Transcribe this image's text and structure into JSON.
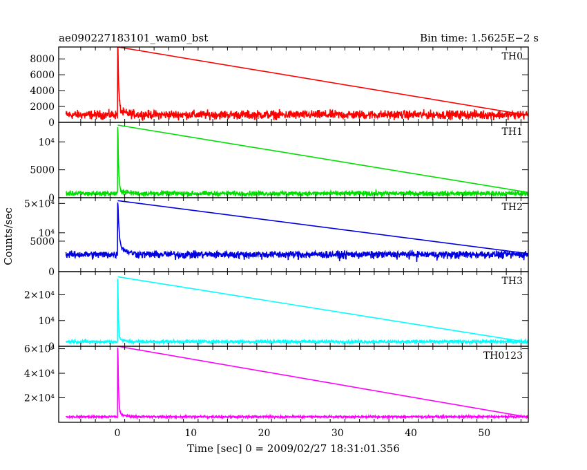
{
  "header": {
    "left_title": "ae090227183101_wam0_bst",
    "right_title": "Bin time: 1.5625E−2 s"
  },
  "axes": {
    "ylabel": "Counts/sec",
    "xlabel": "Time [sec] 0 = 2009/02/27 18:31:01.356"
  },
  "chart_data": {
    "type": "line",
    "x_range": [
      -8,
      56
    ],
    "x_ticks": [
      0,
      10,
      20,
      30,
      40,
      50
    ],
    "x_tick_labels": [
      "0",
      "10",
      "20",
      "30",
      "40",
      "50"
    ],
    "grid": false,
    "panels": [
      {
        "name": "TH0",
        "color": "#ff0000",
        "ylim": [
          0,
          9500
        ],
        "y_ticks": [
          0,
          2000,
          4000,
          6000,
          8000
        ],
        "y_tick_labels": [
          "0",
          "2000",
          "4000",
          "6000",
          "8000"
        ],
        "data_start": -7,
        "data_end": 56,
        "baseline": 950,
        "noise": 420,
        "peak_time": 0.05,
        "peak": 9500,
        "peak_width": 0.12,
        "tail": 1.2
      },
      {
        "name": "TH1",
        "color": "#00e000",
        "ylim": [
          0,
          13500
        ],
        "y_ticks": [
          0,
          5000,
          10000
        ],
        "y_tick_labels": [
          "0",
          "5000",
          "10⁴"
        ],
        "data_start": -7,
        "data_end": 56,
        "baseline": 750,
        "noise": 330,
        "peak_time": 0.05,
        "peak": 13000,
        "peak_width": 0.1,
        "tail": 1.0
      },
      {
        "name": "TH2",
        "color": "#0000e0",
        "ylim": [
          0,
          63000
        ],
        "y_ticks": [
          0,
          5000,
          10000,
          50000
        ],
        "y_tick_labels": [
          "0",
          "5000",
          "10⁴",
          "5×10⁴"
        ],
        "y_scale": "power",
        "y_exponent": 0.35,
        "data_start": -7,
        "data_end": 56,
        "baseline": 1000,
        "noise": 450,
        "peak_time": 0.05,
        "peak": 56000,
        "peak_width": 0.1,
        "tail": 0.8
      },
      {
        "name": "TH3",
        "color": "#00ffff",
        "ylim": [
          0,
          29000
        ],
        "y_ticks": [
          0,
          10000,
          20000
        ],
        "y_tick_labels": [
          "0",
          "10⁴",
          "2×10⁴"
        ],
        "data_start": -7,
        "data_end": 56,
        "baseline": 1800,
        "noise": 480,
        "peak_time": 0.05,
        "peak": 27000,
        "peak_width": 0.08,
        "tail": 0.6
      },
      {
        "name": "TH0123",
        "color": "#ff00ff",
        "ylim": [
          0,
          62000
        ],
        "y_ticks": [
          20000,
          40000,
          60000
        ],
        "y_tick_labels": [
          "2×10⁴",
          "4×10⁴",
          "6×10⁴"
        ],
        "data_start": -7,
        "data_end": 56,
        "baseline": 4500,
        "noise": 650,
        "peak_time": 0.05,
        "peak": 62000,
        "peak_width": 0.1,
        "tail": 0.8
      }
    ]
  }
}
